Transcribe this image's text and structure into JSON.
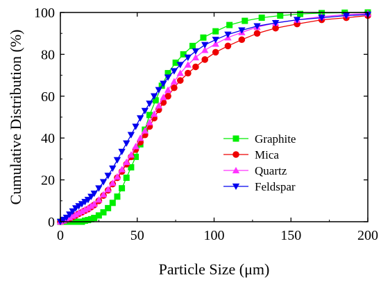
{
  "chart_data": {
    "type": "line",
    "title": "",
    "xlabel": "Particle Size (μm)",
    "ylabel": "Cumulative Distribution (%)",
    "xlim": [
      0,
      200
    ],
    "ylim": [
      0,
      100
    ],
    "x_ticks": [
      0,
      50,
      100,
      150,
      200
    ],
    "y_ticks": [
      0,
      20,
      40,
      60,
      80,
      100
    ],
    "grid": false,
    "legend_position": "center-right",
    "series": [
      {
        "name": "Graphite",
        "color": "#00ee00",
        "marker": "square",
        "x": [
          0,
          2,
          4,
          6,
          8,
          10,
          12,
          14,
          16,
          18,
          20,
          22,
          25,
          28,
          31,
          34,
          37,
          40,
          43,
          46,
          49,
          52,
          55,
          58,
          62,
          66,
          70,
          75,
          80,
          86,
          93,
          101,
          110,
          120,
          131,
          143,
          156,
          170,
          185,
          200
        ],
        "y": [
          0,
          0,
          0,
          0,
          0,
          0,
          0,
          0,
          0.5,
          0.8,
          1.2,
          1.8,
          3,
          4.5,
          6.5,
          9,
          12,
          16,
          21,
          26,
          31,
          37,
          44,
          51,
          58,
          65,
          71,
          76,
          80,
          84,
          88,
          91,
          94,
          96,
          97.5,
          98.5,
          99.3,
          99.7,
          99.9,
          100
        ]
      },
      {
        "name": "Mica",
        "color": "#ee0000",
        "marker": "circle",
        "x": [
          0,
          2,
          4,
          6,
          8,
          10,
          12,
          14,
          16,
          18,
          20,
          22,
          25,
          28,
          31,
          34,
          37,
          40,
          43,
          46,
          49,
          52,
          55,
          58,
          61,
          64,
          67,
          70,
          74,
          78,
          83,
          88,
          94,
          101,
          109,
          118,
          128,
          140,
          154,
          170,
          186,
          200
        ],
        "y": [
          0,
          0.5,
          1,
          1.5,
          2.3,
          3,
          3.8,
          4.5,
          5.3,
          6,
          7,
          8,
          10,
          12.5,
          15,
          18,
          21,
          24,
          27.5,
          31,
          34.5,
          38,
          41.5,
          45.5,
          49.5,
          53.5,
          57,
          60,
          64,
          67.5,
          71,
          74,
          77.5,
          81,
          84,
          87,
          90,
          92.5,
          94.5,
          96.5,
          97.5,
          98.5
        ]
      },
      {
        "name": "Quartz",
        "color": "#ff33ff",
        "marker": "triangle-up",
        "x": [
          0,
          2,
          4,
          6,
          8,
          10,
          12,
          14,
          16,
          18,
          20,
          22,
          25,
          28,
          31,
          34,
          37,
          40,
          43,
          46,
          49,
          52,
          55,
          58,
          61,
          64,
          67,
          70,
          74,
          78,
          83,
          88,
          94,
          101,
          109,
          118,
          128,
          140,
          154,
          170,
          186,
          200
        ],
        "y": [
          0,
          0.5,
          1,
          2,
          2.8,
          3.5,
          4.3,
          5,
          5.8,
          6.5,
          7.5,
          8.5,
          10.5,
          13,
          15.5,
          18.5,
          21.5,
          25,
          28.5,
          32,
          36,
          40,
          43.5,
          47.5,
          51.5,
          55.5,
          59.5,
          63,
          67,
          71,
          75,
          78.5,
          82,
          85,
          88,
          90.5,
          93,
          95,
          96.5,
          98,
          99,
          99.5
        ]
      },
      {
        "name": "Feldspar",
        "color": "#0000ee",
        "marker": "triangle-down",
        "x": [
          0,
          2,
          4,
          6,
          8,
          10,
          12,
          14,
          16,
          18,
          20,
          22,
          25,
          28,
          31,
          34,
          37,
          40,
          43,
          46,
          49,
          52,
          55,
          58,
          61,
          64,
          67,
          70,
          74,
          78,
          83,
          88,
          94,
          101,
          109,
          118,
          128,
          140,
          154,
          170,
          186,
          200
        ],
        "y": [
          0,
          1,
          2,
          3.5,
          5,
          6.5,
          7.5,
          8.5,
          9.5,
          10.5,
          12,
          13.5,
          16,
          19,
          22,
          25.5,
          29.5,
          33.5,
          37.5,
          41.5,
          45.5,
          49.5,
          53,
          56.5,
          60,
          63,
          66,
          69,
          72,
          75,
          78.5,
          81.5,
          84.5,
          87,
          89.5,
          91.5,
          93.5,
          95,
          96.5,
          97.5,
          98.5,
          99
        ]
      }
    ]
  }
}
